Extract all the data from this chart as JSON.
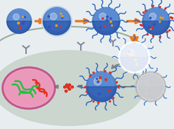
{
  "bg_color": "#f0f0f0",
  "cell_color": "#c8d8c8",
  "cell_edge": "#9aaa9a",
  "nucleus_fill": "#e8a0b0",
  "nucleus_edge": "#c0407a",
  "arrow_orange": "#e87820",
  "arrow_gray": "#909090",
  "nanoparticle_blue_dark": "#1040a0",
  "nanoparticle_blue_light": "#4080d0",
  "nanoparticle_coat": "#d0d8e8",
  "spike_color": "#2060c0",
  "red_dot_color": "#e03020",
  "figsize": [
    2.54,
    1.89
  ],
  "dpi": 100
}
